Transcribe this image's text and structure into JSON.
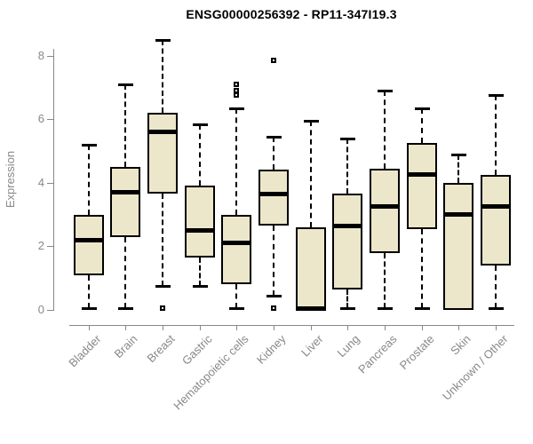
{
  "title": "ENSG00000256392 - RP11-347I19.3",
  "chart_data": {
    "type": "boxplot",
    "title": "ENSG00000256392 - RP11-347I19.3",
    "xlabel": "",
    "ylabel": "Expression",
    "ylim": [
      -0.5,
      8.6
    ],
    "yticks": [
      0,
      2,
      4,
      6,
      8
    ],
    "grid": false,
    "legend": false,
    "box_fill_color": "#ece7cb",
    "box_border_color": "#000000",
    "axis_color": "#888888",
    "categories": [
      "Bladder",
      "Brain",
      "Breast",
      "Gastric",
      "Hematopoietic cells",
      "Kidney",
      "Liver",
      "Lung",
      "Pancreas",
      "Prostate",
      "Skin",
      "Unknown / Other"
    ],
    "boxes": [
      {
        "label": "Bladder",
        "whislo": 0.05,
        "q1": 1.1,
        "med": 2.2,
        "q3": 3.0,
        "whishi": 5.2,
        "outliers": []
      },
      {
        "label": "Brain",
        "whislo": 0.05,
        "q1": 2.3,
        "med": 3.7,
        "q3": 4.5,
        "whishi": 7.1,
        "outliers": []
      },
      {
        "label": "Breast",
        "whislo": 0.75,
        "q1": 3.65,
        "med": 5.6,
        "q3": 6.2,
        "whishi": 8.5,
        "outliers": [
          0.05
        ]
      },
      {
        "label": "Gastric",
        "whislo": 0.75,
        "q1": 1.65,
        "med": 2.5,
        "q3": 3.9,
        "whishi": 5.85,
        "outliers": []
      },
      {
        "label": "Hematopoietic cells",
        "whislo": 0.05,
        "q1": 0.8,
        "med": 2.1,
        "q3": 3.0,
        "whishi": 6.35,
        "outliers": [
          6.75,
          6.9,
          7.1
        ]
      },
      {
        "label": "Kidney",
        "whislo": 0.45,
        "q1": 2.65,
        "med": 3.65,
        "q3": 4.4,
        "whishi": 5.45,
        "outliers": [
          0.05,
          7.85
        ]
      },
      {
        "label": "Liver",
        "whislo": 0.0,
        "q1": 0.0,
        "med": 0.05,
        "q3": 2.6,
        "whishi": 5.95,
        "outliers": []
      },
      {
        "label": "Lung",
        "whislo": 0.05,
        "q1": 0.65,
        "med": 2.65,
        "q3": 3.65,
        "whishi": 5.4,
        "outliers": []
      },
      {
        "label": "Pancreas",
        "whislo": 0.05,
        "q1": 1.8,
        "med": 3.25,
        "q3": 4.45,
        "whishi": 6.9,
        "outliers": []
      },
      {
        "label": "Prostate",
        "whislo": 0.05,
        "q1": 2.55,
        "med": 4.25,
        "q3": 5.25,
        "whishi": 6.35,
        "outliers": []
      },
      {
        "label": "Skin",
        "whislo": 0.0,
        "q1": 0.0,
        "med": 3.0,
        "q3": 4.0,
        "whishi": 4.9,
        "outliers": []
      },
      {
        "label": "Unknown / Other",
        "whislo": 0.05,
        "q1": 1.4,
        "med": 3.25,
        "q3": 4.25,
        "whishi": 6.75,
        "outliers": []
      }
    ]
  }
}
